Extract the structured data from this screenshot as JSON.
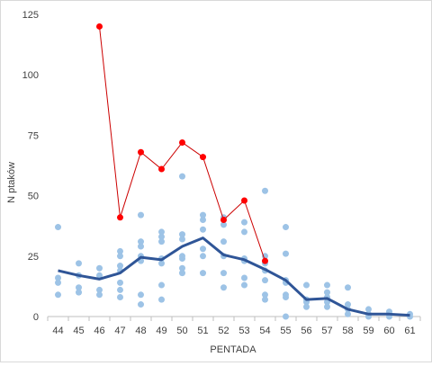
{
  "chart_data": {
    "type": "scatter",
    "xlabel": "PENTADA",
    "ylabel": "N ptaków",
    "x_categories": [
      44,
      45,
      46,
      47,
      48,
      49,
      50,
      51,
      52,
      53,
      54,
      55,
      56,
      57,
      58,
      59,
      60,
      61
    ],
    "ylim": [
      0,
      125
    ],
    "yticks": [
      0,
      25,
      50,
      75,
      100,
      125
    ],
    "grid": false,
    "legend": "none",
    "colors": {
      "scatter": "#9dc3e6",
      "mean_line": "#2f5597",
      "max_line": "#cc0000",
      "max_marker": "#ff0000",
      "axis": "#bfbfbf"
    },
    "scatter_points": [
      [
        44,
        37
      ],
      [
        44,
        16
      ],
      [
        44,
        14
      ],
      [
        44,
        9
      ],
      [
        45,
        22
      ],
      [
        45,
        17
      ],
      [
        45,
        12
      ],
      [
        45,
        10
      ],
      [
        46,
        20
      ],
      [
        46,
        17
      ],
      [
        46,
        11
      ],
      [
        46,
        9
      ],
      [
        47,
        27
      ],
      [
        47,
        25
      ],
      [
        47,
        21
      ],
      [
        47,
        19
      ],
      [
        47,
        14
      ],
      [
        47,
        11
      ],
      [
        47,
        8
      ],
      [
        48,
        42
      ],
      [
        48,
        31
      ],
      [
        48,
        29
      ],
      [
        48,
        25
      ],
      [
        48,
        23
      ],
      [
        48,
        9
      ],
      [
        48,
        5
      ],
      [
        49,
        35
      ],
      [
        49,
        33
      ],
      [
        49,
        31
      ],
      [
        49,
        24
      ],
      [
        49,
        22
      ],
      [
        49,
        13
      ],
      [
        49,
        7
      ],
      [
        50,
        58
      ],
      [
        50,
        34
      ],
      [
        50,
        32
      ],
      [
        50,
        25
      ],
      [
        50,
        24
      ],
      [
        50,
        20
      ],
      [
        50,
        18
      ],
      [
        51,
        42
      ],
      [
        51,
        40
      ],
      [
        51,
        36
      ],
      [
        51,
        28
      ],
      [
        51,
        25
      ],
      [
        51,
        18
      ],
      [
        52,
        41
      ],
      [
        52,
        38
      ],
      [
        52,
        31
      ],
      [
        52,
        25
      ],
      [
        52,
        18
      ],
      [
        52,
        12
      ],
      [
        53,
        39
      ],
      [
        53,
        35
      ],
      [
        53,
        24
      ],
      [
        53,
        23
      ],
      [
        53,
        16
      ],
      [
        53,
        13
      ],
      [
        54,
        52
      ],
      [
        54,
        25
      ],
      [
        54,
        22
      ],
      [
        54,
        19
      ],
      [
        54,
        15
      ],
      [
        54,
        9
      ],
      [
        54,
        7
      ],
      [
        55,
        37
      ],
      [
        55,
        26
      ],
      [
        55,
        15
      ],
      [
        55,
        14
      ],
      [
        55,
        9
      ],
      [
        55,
        8
      ],
      [
        55,
        0
      ],
      [
        56,
        13
      ],
      [
        56,
        7
      ],
      [
        56,
        6
      ],
      [
        56,
        4
      ],
      [
        57,
        13
      ],
      [
        57,
        10
      ],
      [
        57,
        8
      ],
      [
        57,
        6
      ],
      [
        57,
        4
      ],
      [
        58,
        12
      ],
      [
        58,
        5
      ],
      [
        58,
        3
      ],
      [
        58,
        1
      ],
      [
        59,
        3
      ],
      [
        59,
        1
      ],
      [
        59,
        0
      ],
      [
        60,
        2
      ],
      [
        60,
        1
      ],
      [
        60,
        0
      ],
      [
        61,
        1
      ],
      [
        61,
        0
      ]
    ],
    "series": [
      {
        "x": [
          46,
          47,
          48,
          49,
          50,
          51,
          52,
          53,
          54
        ],
        "values": [
          120,
          41,
          68,
          61,
          72,
          66,
          40,
          48,
          23
        ]
      },
      {
        "x": [
          44,
          45,
          46,
          47,
          48,
          49,
          50,
          51,
          52,
          53,
          54,
          55,
          56,
          57,
          58,
          59,
          60,
          61
        ],
        "values": [
          19,
          17,
          15.5,
          18,
          24.5,
          23.5,
          29,
          32.5,
          25.5,
          23.5,
          19.5,
          15,
          7,
          7.5,
          3,
          1,
          1,
          0.5
        ]
      }
    ]
  }
}
